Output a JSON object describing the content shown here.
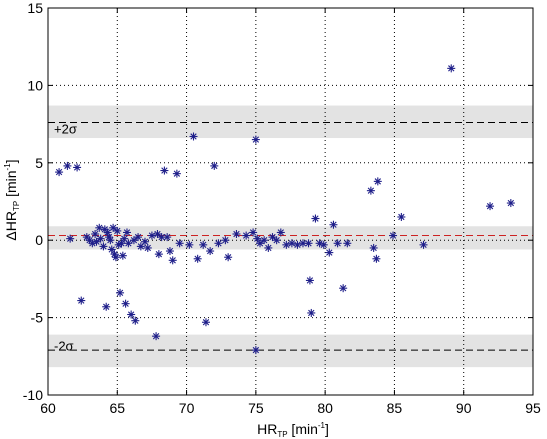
{
  "chart_data": {
    "type": "scatter",
    "title": "",
    "xlabel": {
      "main": "HR",
      "sub": "TP",
      "unit": " [min",
      "sup": "-1",
      "close": "]"
    },
    "ylabel": {
      "main": "ΔHR",
      "sub": "TP",
      "unit": " [min",
      "sup": "-1",
      "close": "]"
    },
    "xlim": [
      60,
      95
    ],
    "ylim": [
      -10,
      15
    ],
    "x_ticks": [
      60,
      65,
      70,
      75,
      80,
      85,
      90,
      95
    ],
    "y_ticks": [
      -10,
      -5,
      0,
      5,
      10,
      15
    ],
    "grid": true,
    "grid_style": "dotted",
    "marker": "asterisk",
    "colors": {
      "marker": "#1f1f8a",
      "mean_line": "#cc2222",
      "limit_line": "#000000",
      "band": "#e3e3e3",
      "frame": "#000000"
    },
    "mean_line": 0.3,
    "limit_lines": [
      {
        "label": "+2σ",
        "value": 7.6,
        "band": [
          6.6,
          8.7
        ]
      },
      {
        "label": "-2σ",
        "value": -7.1,
        "band": [
          -8.2,
          -6.1
        ]
      }
    ],
    "mean_band": [
      -0.6,
      0.9
    ],
    "series": [
      {
        "points": [
          [
            60.8,
            4.4
          ],
          [
            61.4,
            4.8
          ],
          [
            62.1,
            4.7
          ],
          [
            61.6,
            0.1
          ],
          [
            62.4,
            -3.9
          ],
          [
            62.8,
            0.2
          ],
          [
            63.0,
            0.0
          ],
          [
            63.2,
            -0.2
          ],
          [
            63.4,
            0.4
          ],
          [
            63.5,
            -0.1
          ],
          [
            63.7,
            0.8
          ],
          [
            63.8,
            0.1
          ],
          [
            64.0,
            -0.4
          ],
          [
            64.1,
            0.7
          ],
          [
            64.2,
            -4.3
          ],
          [
            64.3,
            0.5
          ],
          [
            64.4,
            0.2
          ],
          [
            64.5,
            0.0
          ],
          [
            64.6,
            -0.6
          ],
          [
            64.7,
            0.8
          ],
          [
            64.8,
            -0.9
          ],
          [
            64.9,
            -1.1
          ],
          [
            65.0,
            0.6
          ],
          [
            65.1,
            -0.3
          ],
          [
            65.2,
            -3.4
          ],
          [
            65.3,
            -0.2
          ],
          [
            65.4,
            -1.0
          ],
          [
            65.5,
            0.1
          ],
          [
            65.6,
            -4.1
          ],
          [
            65.7,
            0.5
          ],
          [
            65.8,
            -0.2
          ],
          [
            66.0,
            -4.8
          ],
          [
            66.2,
            0.0
          ],
          [
            66.3,
            -5.2
          ],
          [
            66.5,
            0.2
          ],
          [
            66.7,
            -0.4
          ],
          [
            67.0,
            -0.1
          ],
          [
            67.2,
            -0.5
          ],
          [
            67.5,
            0.3
          ],
          [
            67.8,
            -6.2
          ],
          [
            67.9,
            0.4
          ],
          [
            68.0,
            -0.9
          ],
          [
            68.2,
            0.2
          ],
          [
            68.4,
            4.5
          ],
          [
            68.6,
            0.2
          ],
          [
            68.8,
            -0.7
          ],
          [
            69.0,
            -1.3
          ],
          [
            69.3,
            4.3
          ],
          [
            69.5,
            -0.2
          ],
          [
            70.2,
            -0.3
          ],
          [
            70.5,
            6.7
          ],
          [
            70.8,
            -1.2
          ],
          [
            71.2,
            -0.3
          ],
          [
            71.4,
            -5.3
          ],
          [
            71.7,
            -0.7
          ],
          [
            72.0,
            4.8
          ],
          [
            72.3,
            -0.2
          ],
          [
            72.8,
            0.0
          ],
          [
            73.0,
            -1.1
          ],
          [
            73.6,
            0.4
          ],
          [
            74.3,
            0.3
          ],
          [
            74.8,
            0.5
          ],
          [
            75.0,
            6.5
          ],
          [
            75.0,
            -7.1
          ],
          [
            75.1,
            0.1
          ],
          [
            75.3,
            -0.2
          ],
          [
            75.6,
            0.0
          ],
          [
            75.9,
            -0.5
          ],
          [
            76.2,
            0.2
          ],
          [
            76.5,
            0.0
          ],
          [
            76.8,
            0.5
          ],
          [
            77.2,
            -0.3
          ],
          [
            77.6,
            -0.2
          ],
          [
            78.0,
            -0.3
          ],
          [
            78.4,
            -0.2
          ],
          [
            78.8,
            -0.2
          ],
          [
            78.9,
            -2.6
          ],
          [
            79.0,
            -4.7
          ],
          [
            79.3,
            1.4
          ],
          [
            79.6,
            -0.2
          ],
          [
            79.9,
            -0.3
          ],
          [
            80.3,
            -0.8
          ],
          [
            80.6,
            1.0
          ],
          [
            80.9,
            -0.2
          ],
          [
            81.3,
            -3.1
          ],
          [
            81.6,
            -0.2
          ],
          [
            83.3,
            3.2
          ],
          [
            83.5,
            -0.5
          ],
          [
            83.7,
            -1.2
          ],
          [
            83.8,
            3.8
          ],
          [
            84.9,
            0.3
          ],
          [
            85.5,
            1.5
          ],
          [
            87.1,
            -0.3
          ],
          [
            89.1,
            11.1
          ],
          [
            91.9,
            2.2
          ],
          [
            93.4,
            2.4
          ]
        ]
      }
    ]
  }
}
